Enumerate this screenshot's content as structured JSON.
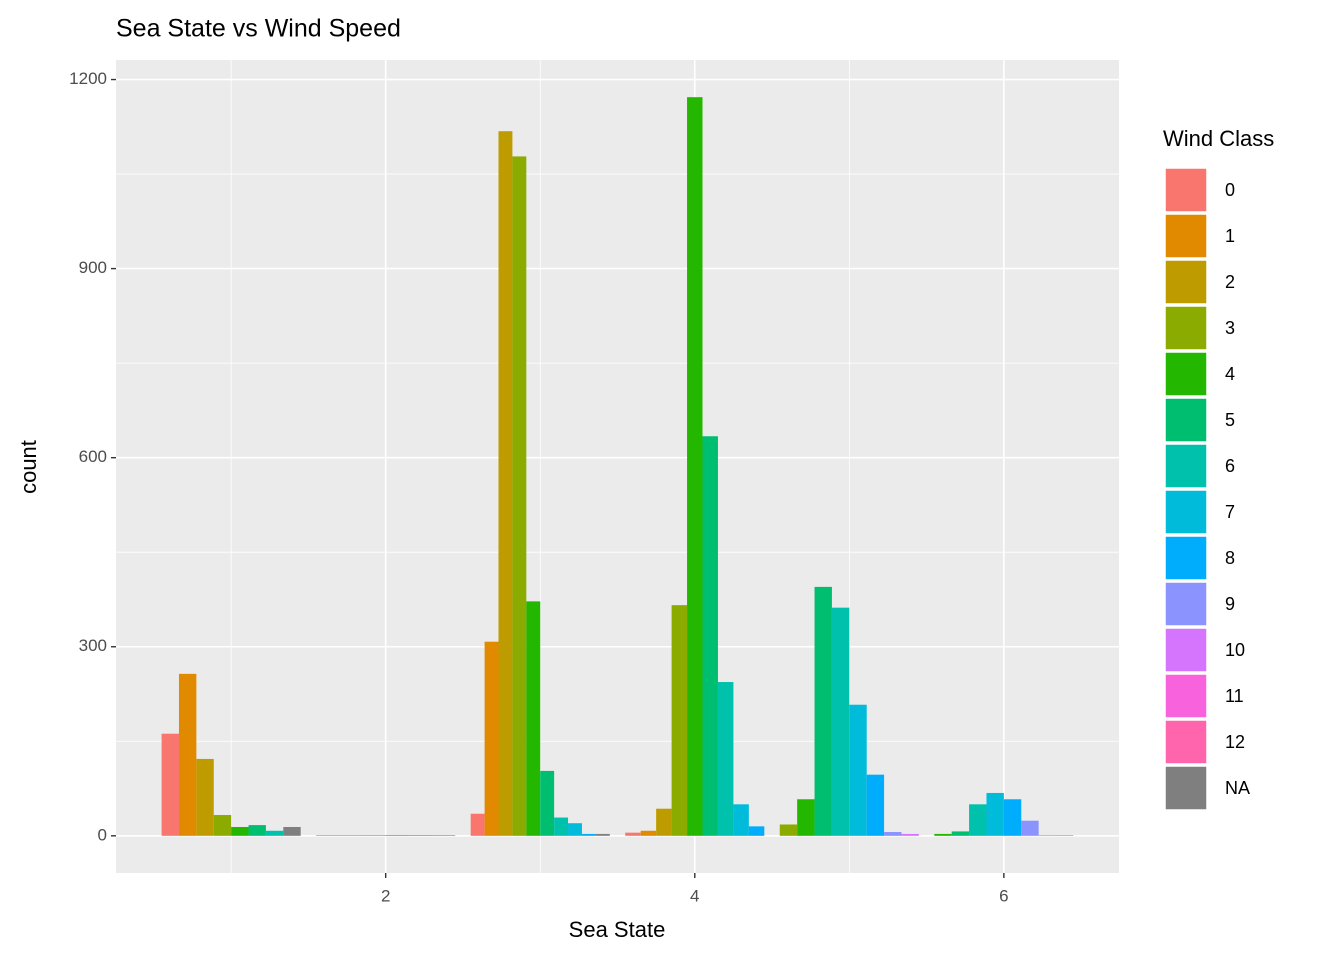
{
  "chart_data": {
    "type": "bar",
    "title": "Sea State vs Wind Speed",
    "x_label": "Sea State",
    "y_label": "count",
    "legend_title": "Wind Class",
    "x": [
      1,
      2,
      3,
      4,
      5,
      6
    ],
    "series": [
      {
        "name": "0",
        "color": "#F8766D",
        "values": [
          162,
          null,
          35,
          5,
          null,
          null
        ]
      },
      {
        "name": "1",
        "color": "#E18A00",
        "values": [
          257,
          1,
          308,
          8,
          null,
          null
        ]
      },
      {
        "name": "2",
        "color": "#BE9C00",
        "values": [
          122,
          1,
          1118,
          43,
          null,
          null
        ]
      },
      {
        "name": "3",
        "color": "#8CAB00",
        "values": [
          33,
          1,
          1078,
          366,
          18,
          null
        ]
      },
      {
        "name": "4",
        "color": "#24B700",
        "values": [
          14,
          1,
          372,
          1172,
          58,
          3
        ]
      },
      {
        "name": "5",
        "color": "#00BE70",
        "values": [
          17,
          1,
          103,
          634,
          395,
          7
        ]
      },
      {
        "name": "6",
        "color": "#00C1AB",
        "values": [
          8,
          1,
          29,
          244,
          362,
          50
        ]
      },
      {
        "name": "7",
        "color": "#00BBDA",
        "values": [
          null,
          null,
          20,
          50,
          208,
          68
        ]
      },
      {
        "name": "8",
        "color": "#00ACFC",
        "values": [
          null,
          null,
          3,
          15,
          97,
          58
        ]
      },
      {
        "name": "9",
        "color": "#8B93FF",
        "values": [
          null,
          null,
          null,
          null,
          6,
          24
        ]
      },
      {
        "name": "10",
        "color": "#D575FE",
        "values": [
          null,
          null,
          null,
          null,
          3,
          null
        ]
      },
      {
        "name": "11",
        "color": "#F962DD",
        "values": [
          null,
          null,
          null,
          null,
          null,
          1
        ]
      },
      {
        "name": "12",
        "color": "#FF65AC",
        "values": [
          null,
          null,
          null,
          null,
          null,
          1
        ]
      },
      {
        "name": "NA",
        "color": "#7F7F7F",
        "values": [
          14,
          null,
          3,
          null,
          null,
          null
        ]
      }
    ],
    "xlim": [
      0.255,
      6.745
    ],
    "xticks": [
      2,
      4,
      6
    ],
    "x_minor_breaks": [
      1,
      3,
      5
    ],
    "ylim": [
      -59,
      1231
    ],
    "yticks": [
      0,
      300,
      600,
      900,
      1200
    ],
    "y_minor_breaks": [
      150,
      450,
      750,
      1050
    ],
    "grid": true,
    "legend_position": "right"
  }
}
